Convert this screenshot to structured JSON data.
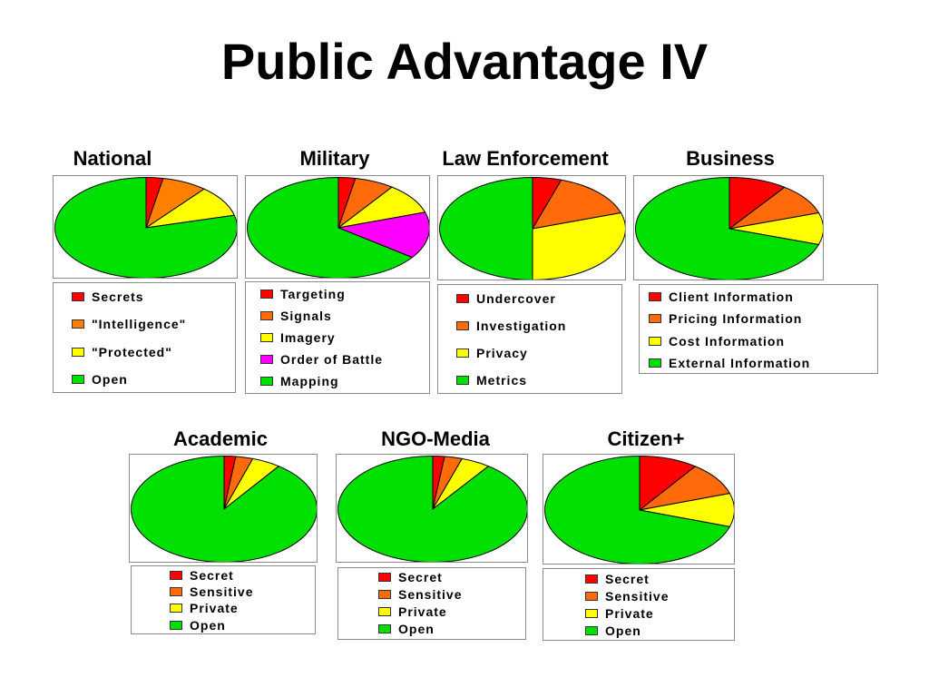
{
  "title": "Public Advantage IV",
  "colors": {
    "red": "#ff0000",
    "orange": "#ff6a0a",
    "yellow": "#ffff00",
    "magenta": "#ff00ff",
    "green": "#00e000"
  },
  "chart_data": [
    {
      "type": "pie",
      "title": "National",
      "slices": [
        {
          "label": "Secrets",
          "value": 3,
          "color": "#ff0000"
        },
        {
          "label": "\"Intelligence\"",
          "value": 8,
          "color": "#ff8000"
        },
        {
          "label": "\"Protected\"",
          "value": 10,
          "color": "#ffff00"
        },
        {
          "label": "Open",
          "value": 79,
          "color": "#00e000"
        }
      ]
    },
    {
      "type": "pie",
      "title": "Military",
      "slices": [
        {
          "label": "Targeting",
          "value": 3,
          "color": "#ff0000"
        },
        {
          "label": "Signals",
          "value": 7,
          "color": "#ff6a0a"
        },
        {
          "label": "Imagery",
          "value": 10,
          "color": "#ffff00"
        },
        {
          "label": "Order of Battle",
          "value": 15,
          "color": "#ff00ff"
        },
        {
          "label": "Mapping",
          "value": 65,
          "color": "#00e000"
        }
      ]
    },
    {
      "type": "pie",
      "title": "Law Enforcement",
      "slices": [
        {
          "label": "Undercover",
          "value": 5,
          "color": "#ff0000"
        },
        {
          "label": "Investigation",
          "value": 15,
          "color": "#ff6a0a"
        },
        {
          "label": "Privacy",
          "value": 30,
          "color": "#ffff00"
        },
        {
          "label": "Metrics",
          "value": 50,
          "color": "#00e000"
        }
      ]
    },
    {
      "type": "pie",
      "title": "Business",
      "slices": [
        {
          "label": "Client Information",
          "value": 10,
          "color": "#ff0000"
        },
        {
          "label": "Pricing Information",
          "value": 10,
          "color": "#ff6a0a"
        },
        {
          "label": "Cost Information",
          "value": 10,
          "color": "#ffff00"
        },
        {
          "label": "External Information",
          "value": 70,
          "color": "#00e000"
        }
      ]
    },
    {
      "type": "pie",
      "title": "Academic",
      "slices": [
        {
          "label": "Secret",
          "value": 2,
          "color": "#ff0000"
        },
        {
          "label": "Sensitive",
          "value": 3,
          "color": "#ff6a0a"
        },
        {
          "label": "Private",
          "value": 5,
          "color": "#ffff00"
        },
        {
          "label": "Open",
          "value": 90,
          "color": "#00e000"
        }
      ]
    },
    {
      "type": "pie",
      "title": "NGO-Media",
      "slices": [
        {
          "label": "Secret",
          "value": 2,
          "color": "#ff0000"
        },
        {
          "label": "Sensitive",
          "value": 3,
          "color": "#ff6a0a"
        },
        {
          "label": "Private",
          "value": 5,
          "color": "#ffff00"
        },
        {
          "label": "Open",
          "value": 90,
          "color": "#00e000"
        }
      ]
    },
    {
      "type": "pie",
      "title": "Citizen+",
      "slices": [
        {
          "label": "Secret",
          "value": 10,
          "color": "#ff0000"
        },
        {
          "label": "Sensitive",
          "value": 10,
          "color": "#ff6a0a"
        },
        {
          "label": "Private",
          "value": 10,
          "color": "#ffff00"
        },
        {
          "label": "Open",
          "value": 70,
          "color": "#00e000"
        }
      ]
    }
  ]
}
